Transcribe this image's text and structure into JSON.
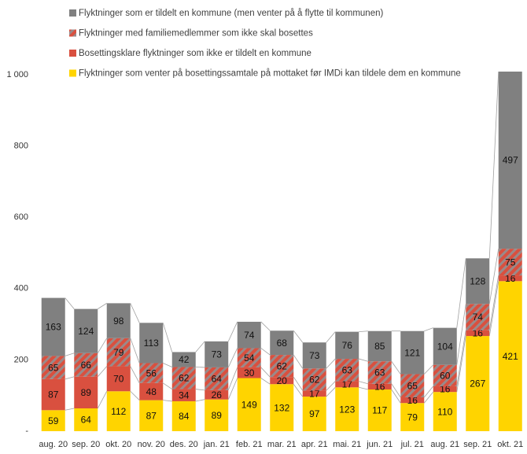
{
  "chart_data": {
    "type": "stacked_bar",
    "categories": [
      "aug. 20",
      "sep. 20",
      "okt. 20",
      "nov. 20",
      "des. 20",
      "jan. 21",
      "feb. 21",
      "mar. 21",
      "apr. 21",
      "mai. 21",
      "jun. 21",
      "jul. 21",
      "aug. 21",
      "sep. 21",
      "okt. 21"
    ],
    "series": [
      {
        "name": "Flyktninger som venter på bosettingssamtale på mottaket før IMDi kan tildele dem en kommune",
        "color": "#ffd400",
        "values": [
          59,
          64,
          112,
          87,
          84,
          89,
          149,
          132,
          97,
          123,
          117,
          79,
          110,
          267,
          421
        ]
      },
      {
        "name": "Bosettingsklare flyktninger som ikke er tildelt en kommune",
        "color": "#d9503f",
        "values": [
          87,
          89,
          70,
          48,
          34,
          26,
          30,
          20,
          17,
          17,
          16,
          16,
          16,
          16,
          16
        ]
      },
      {
        "name": "Flyktninger med familiemedlemmer som ikke skal bosettes",
        "color": "#d9503f",
        "hatch_color": "#9a8a8a",
        "values": [
          65,
          66,
          79,
          56,
          62,
          64,
          54,
          62,
          62,
          63,
          63,
          65,
          60,
          74,
          75
        ]
      },
      {
        "name": "Flyktninger som er tildelt en kommune (men venter på å flytte til kommunen)",
        "color": "#808080",
        "values": [
          163,
          124,
          98,
          113,
          42,
          73,
          74,
          68,
          73,
          76,
          85,
          121,
          104,
          128,
          497
        ]
      }
    ],
    "ylim": [
      0,
      1020
    ],
    "yticks": [
      {
        "value": 0,
        "label": "-"
      },
      200,
      400,
      600,
      800,
      {
        "value": 1000,
        "label": "1 000"
      }
    ]
  }
}
